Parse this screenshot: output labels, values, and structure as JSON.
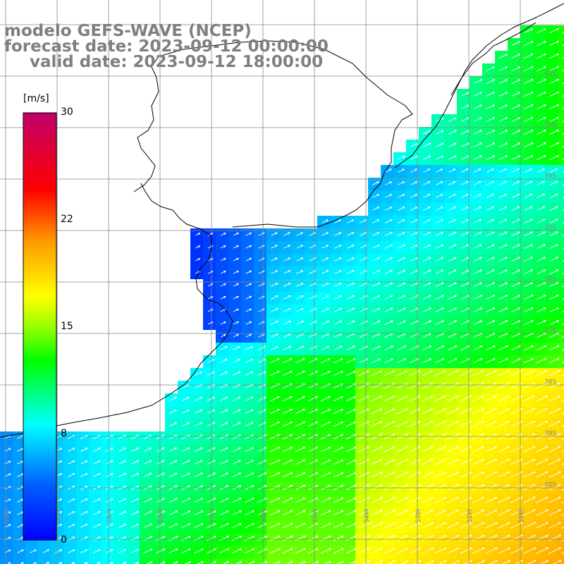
{
  "title": {
    "line1": "modelo GEFS-WAVE (NCEP)",
    "line2": "forecast date: 2023-09-12 00:00:00",
    "line3": "valid date: 2023-09-12 18:00:00"
  },
  "legend": {
    "unit": "[m/s]",
    "min": 0,
    "max": 30,
    "ticks": [
      "30",
      "22",
      "15",
      "8",
      "0"
    ],
    "colors": [
      "#0000ff",
      "#00aaff",
      "#00ffff",
      "#00ff00",
      "#ffff00",
      "#ff8800",
      "#ff0000",
      "#c0006a"
    ]
  },
  "map_axes": {
    "lat_labels": [
      "32S",
      "33S",
      "34S",
      "35S",
      "36S",
      "37S",
      "38S",
      "39S",
      "40S"
    ],
    "lon_labels": [
      "61W",
      "60W",
      "59W",
      "58W",
      "57W",
      "56W",
      "55W",
      "54W",
      "53W",
      "52W",
      "51W"
    ]
  },
  "colors": {
    "land": "#ffffff",
    "grid": "#888888",
    "coast": "#000000",
    "arrow": "#ffffff"
  }
}
